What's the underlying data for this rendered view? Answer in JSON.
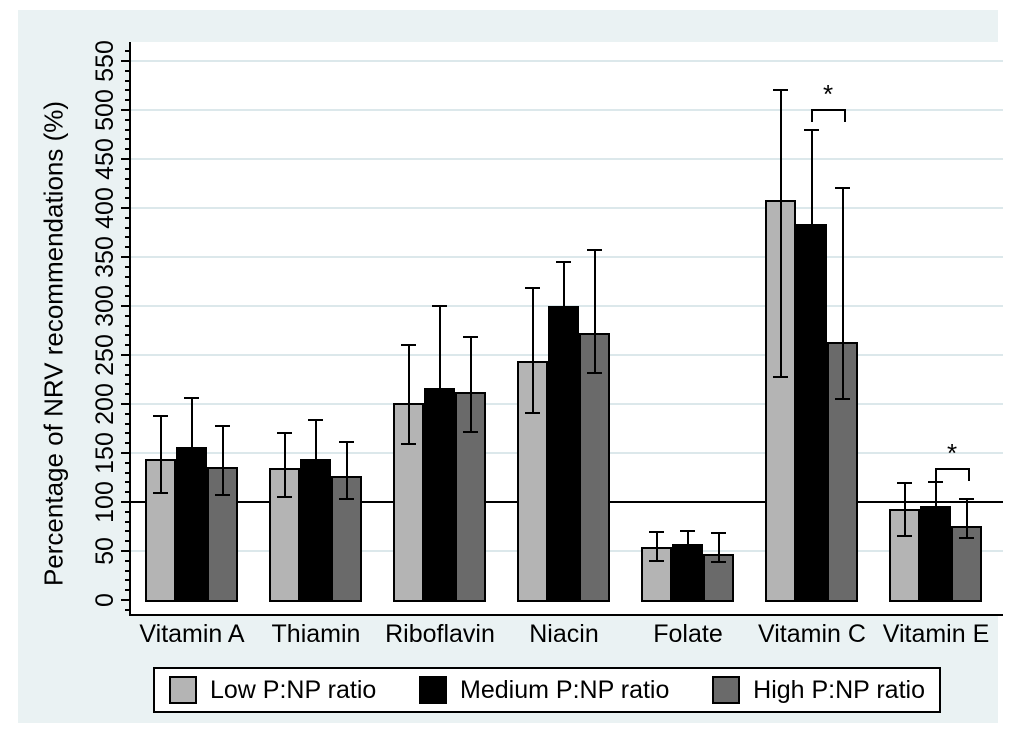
{
  "chart_data": {
    "type": "bar",
    "title": "",
    "ylabel": "Percentage of NRV recommendations (%)",
    "xlabel": "",
    "ylim": [
      0,
      550
    ],
    "ytick_major_step": 50,
    "ytick_minor_step": 10,
    "grid": "horizontal, every 50",
    "reference_line": 100,
    "legend_position": "bottom",
    "categories": [
      "Vitamin A",
      "Thiamin",
      "Riboflavin",
      "Niacin",
      "Folate",
      "Vitamin C",
      "Vitamin E"
    ],
    "series": [
      {
        "name": "Low P:NP ratio",
        "color": "#b4b4b4",
        "values": [
          144,
          135,
          201,
          244,
          54,
          408,
          93
        ],
        "ci_low": [
          109,
          105,
          159,
          191,
          40,
          228,
          65
        ],
        "ci_high": [
          188,
          170,
          260,
          318,
          69,
          520,
          119
        ]
      },
      {
        "name": "Medium P:NP ratio",
        "color": "#000000",
        "values": [
          156,
          144,
          216,
          300,
          57,
          384,
          96
        ],
        "ci_low": [
          106,
          104,
          132,
          255,
          44,
          288,
          72
        ],
        "ci_high": [
          206,
          184,
          300,
          345,
          70,
          480,
          120
        ]
      },
      {
        "name": "High P:NP ratio",
        "color": "#6a6a6a",
        "values": [
          136,
          127,
          212,
          272,
          47,
          263,
          76
        ],
        "ci_low": [
          107,
          103,
          171,
          232,
          39,
          205,
          63
        ],
        "ci_high": [
          178,
          161,
          268,
          357,
          68,
          420,
          103
        ]
      }
    ],
    "significance_markers": [
      {
        "category": "Vitamin C",
        "category_index": 5,
        "between_series": [
          "Medium P:NP ratio",
          "High P:NP ratio"
        ],
        "label": "*",
        "bracket_y_value": 501
      },
      {
        "category": "Vitamin E",
        "category_index": 6,
        "between_series": [
          "Medium P:NP ratio",
          "High P:NP ratio"
        ],
        "label": "*",
        "bracket_y_value": 135
      }
    ],
    "colors": {
      "figure_background": "#eaf2f3",
      "plot_background": "#ffffff",
      "gridline": "#dce8eb",
      "axis": "#000000"
    }
  }
}
